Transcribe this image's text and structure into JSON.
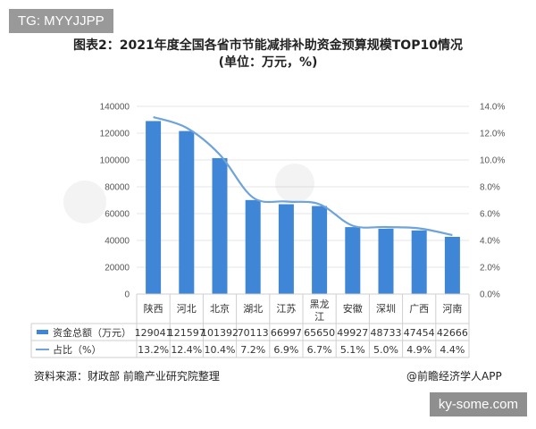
{
  "watermark_tag": "TG: MYYJJPP",
  "site_tag": "ky-some.com",
  "title_line1": "图表2：2021年度全国各省市节能减排补助资金预算规模TOP10情况",
  "title_line2": "(单位：万元，%)",
  "source": "资料来源：财政部 前瞻产业研究院整理",
  "brand": "@前瞻经济学人APP",
  "colors": {
    "bar": "#3f86d6",
    "line": "#6fa3d9",
    "grid": "#e4e4e4"
  },
  "chart_data": {
    "type": "bar",
    "categories": [
      "陕西",
      "河北",
      "北京",
      "湖北",
      "江苏",
      "黑龙江",
      "安徽",
      "深圳",
      "广西",
      "河南"
    ],
    "series": [
      {
        "name": "资金总额（万元）",
        "type": "bar",
        "axis": "left",
        "values": [
          129041,
          121597,
          101392,
          70113,
          66997,
          65650,
          49927,
          48733,
          47454,
          42666
        ],
        "labels": [
          "129041",
          "121597",
          "101392",
          "70113",
          "66997",
          "65650",
          "49927",
          "48733",
          "47454",
          "42666"
        ]
      },
      {
        "name": "占比（%）",
        "type": "line",
        "axis": "right",
        "values": [
          13.2,
          12.4,
          10.4,
          7.2,
          6.9,
          6.7,
          5.1,
          5.0,
          4.9,
          4.4
        ],
        "labels": [
          "13.2%",
          "12.4%",
          "10.4%",
          "7.2%",
          "6.9%",
          "6.7%",
          "5.1%",
          "5.0%",
          "4.9%",
          "4.4%"
        ]
      }
    ],
    "y_left": {
      "min": 0,
      "max": 140000,
      "ticks": [
        "0",
        "20000",
        "40000",
        "60000",
        "80000",
        "100000",
        "120000",
        "140000"
      ]
    },
    "y_right": {
      "min": 0,
      "max": 14,
      "ticks": [
        "0.0%",
        "2.0%",
        "4.0%",
        "6.0%",
        "8.0%",
        "10.0%",
        "12.0%",
        "14.0%"
      ]
    },
    "grid": true,
    "legend": "data-table"
  }
}
